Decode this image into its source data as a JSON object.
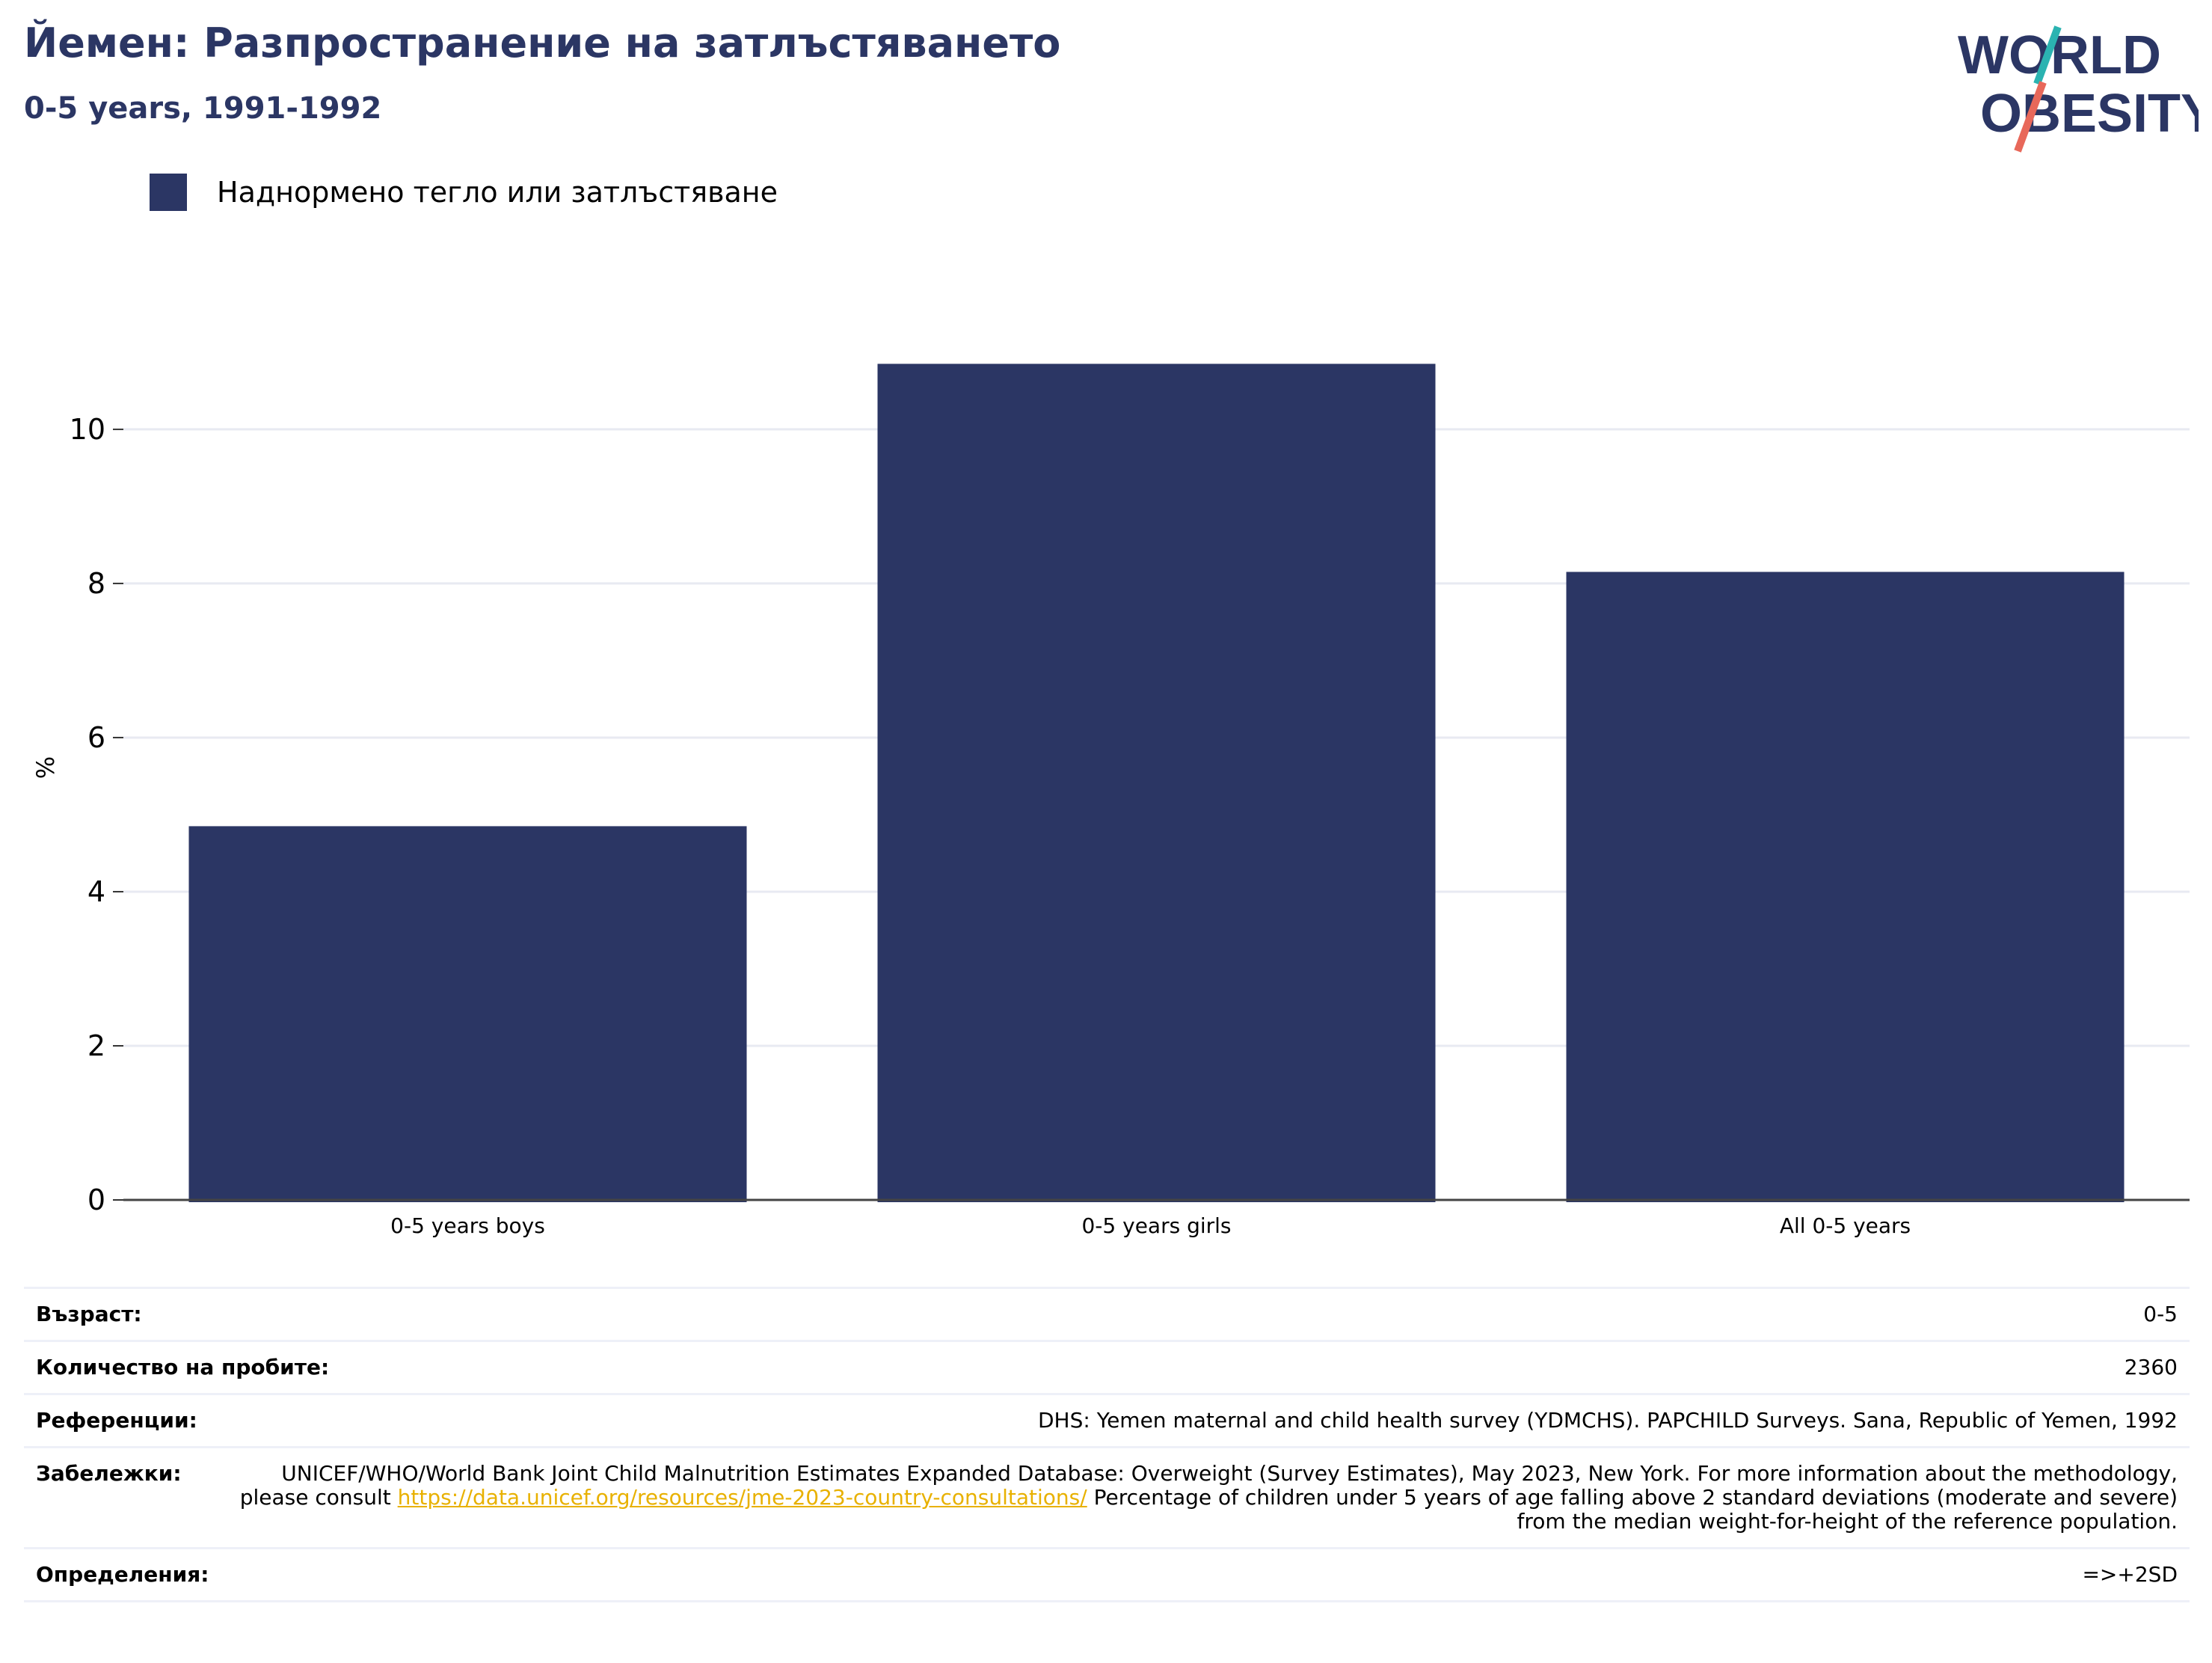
{
  "header": {
    "title": "Йемен: Разпространение на затлъстяването",
    "subtitle": "0-5 years, 1991-1992"
  },
  "logo": {
    "line1": "WORLD",
    "line2": "OBESITY"
  },
  "legend": {
    "label": "Наднормено тегло или затлъстяване"
  },
  "colors": {
    "bar": "#2b3664",
    "title": "#2b3664",
    "link": "#e8b100",
    "logo_teal": "#2bb3b1",
    "logo_coral": "#e8685a"
  },
  "chart_data": {
    "type": "bar",
    "categories": [
      "0-5 years boys",
      "0-5 years girls",
      "All 0-5 years"
    ],
    "series": [
      {
        "name": "Наднормено тегло или затлъстяване",
        "values": [
          4.85,
          10.85,
          8.15
        ]
      }
    ],
    "ylabel": "%",
    "ylim": [
      0,
      11.3
    ],
    "yticks": [
      0,
      2,
      4,
      6,
      8,
      10
    ],
    "grid": true,
    "legend_position": "top-left"
  },
  "info": {
    "age_label": "Възраст:",
    "age_value": "0-5",
    "sample_label": "Количество на пробите:",
    "sample_value": "2360",
    "refs_label": "Референции:",
    "refs_value": "DHS: Yemen maternal and child health survey (YDMCHS). PAPCHILD Surveys. Sana, Republic of Yemen, 1992",
    "notes_label": "Забележки:",
    "notes_text_1": "UNICEF/WHO/World Bank Joint Child Malnutrition Estimates Expanded Database: Overweight (Survey Estimates), May 2023, New York. For more information about the methodology, please consult ",
    "notes_link": "https://data.unicef.org/resources/jme-2023-country-consultations/",
    "notes_text_2": " Percentage of children under 5 years of age falling above 2 standard deviations (moderate and severe) from the median weight-for-height of the reference population.",
    "defs_label": "Определения:",
    "defs_value": "=>+2SD"
  }
}
